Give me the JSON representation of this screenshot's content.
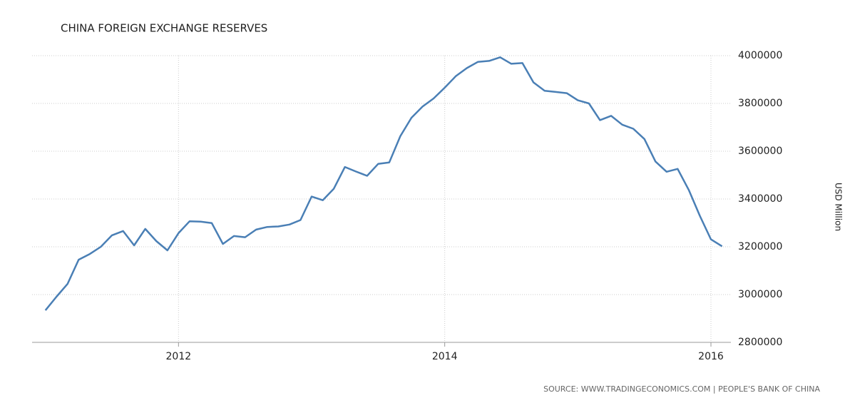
{
  "chart_data": {
    "type": "line",
    "title": "CHINA FOREIGN EXCHANGE RESERVES",
    "y_label": "USD Million",
    "source": "SOURCE: WWW.TRADINGECONOMICS.COM | PEOPLE'S BANK OF CHINA",
    "x": [
      "2011-01",
      "2011-02",
      "2011-03",
      "2011-04",
      "2011-05",
      "2011-06",
      "2011-07",
      "2011-08",
      "2011-09",
      "2011-10",
      "2011-11",
      "2011-12",
      "2012-01",
      "2012-02",
      "2012-03",
      "2012-04",
      "2012-05",
      "2012-06",
      "2012-07",
      "2012-08",
      "2012-09",
      "2012-10",
      "2012-11",
      "2012-12",
      "2013-01",
      "2013-02",
      "2013-03",
      "2013-04",
      "2013-05",
      "2013-06",
      "2013-07",
      "2013-08",
      "2013-09",
      "2013-10",
      "2013-11",
      "2013-12",
      "2014-01",
      "2014-02",
      "2014-03",
      "2014-04",
      "2014-05",
      "2014-06",
      "2014-07",
      "2014-08",
      "2014-09",
      "2014-10",
      "2014-11",
      "2014-12",
      "2015-01",
      "2015-02",
      "2015-03",
      "2015-04",
      "2015-05",
      "2015-06",
      "2015-07",
      "2015-08",
      "2015-09",
      "2015-10",
      "2015-11",
      "2015-12",
      "2016-01",
      "2016-02"
    ],
    "series": [
      {
        "name": "China Foreign Exchange Reserves",
        "color": "#4a7fb5",
        "values": [
          2934000,
          2991000,
          3045000,
          3146000,
          3170000,
          3200000,
          3248000,
          3266000,
          3206000,
          3275000,
          3224000,
          3185000,
          3257000,
          3307000,
          3305000,
          3299000,
          3212000,
          3245000,
          3240000,
          3272000,
          3283000,
          3285000,
          3293000,
          3312000,
          3410000,
          3395000,
          3443000,
          3534000,
          3515000,
          3497000,
          3547000,
          3553000,
          3663000,
          3740000,
          3787000,
          3821000,
          3866000,
          3914000,
          3948000,
          3974000,
          3978000,
          3993000,
          3966000,
          3969000,
          3888000,
          3853000,
          3848000,
          3843000,
          3813000,
          3800000,
          3730000,
          3748000,
          3711000,
          3694000,
          3651000,
          3557000,
          3514000,
          3526000,
          3438000,
          3330000,
          3231000,
          3202000
        ]
      }
    ],
    "xlim": [
      2010.9,
      2016.15
    ],
    "xticks": [
      2012,
      2014,
      2016
    ],
    "ylim": [
      2800000,
      4000000
    ],
    "yticks": [
      2800000,
      3000000,
      3200000,
      3400000,
      3600000,
      3800000,
      4000000
    ],
    "grid": true
  }
}
